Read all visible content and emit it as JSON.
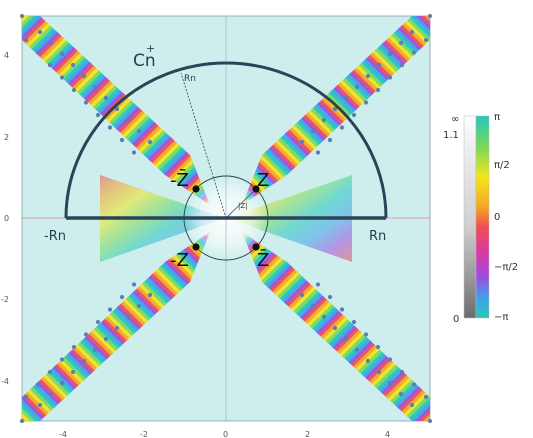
{
  "diagram": {
    "labels": {
      "contour": "C",
      "contour_plus": "+",
      "contour_sub": "n",
      "radius": "Rn",
      "left_end": "-Rn",
      "right_end": "Rn",
      "z": "Z",
      "zbar_top_left": "-Z̄",
      "zbar_bottom_right": "Z̄",
      "neg_z": "-Z",
      "abs_z": "|Z|"
    },
    "x_ticks": [
      "-4",
      "-2",
      "0",
      "2",
      "4"
    ],
    "y_ticks": [
      "4",
      "2",
      "0",
      "-2",
      "-4"
    ],
    "colorbar": {
      "left_labels": [
        "∞",
        "1.1",
        "0"
      ],
      "right_labels": [
        "π",
        "π/2",
        "0",
        "−π/2",
        "−π"
      ],
      "colors": [
        "#26c7b9",
        "#7ed957",
        "#f2e61c",
        "#f5a623",
        "#ef4d52",
        "#d83aa8",
        "#9a4fe0",
        "#3fa2e8",
        "#26c7b9"
      ]
    },
    "colors": {
      "background": "#cdeeed",
      "contour": "#2c4257",
      "dots": "#5b7eb3",
      "axis": "#9fb3bf"
    }
  }
}
